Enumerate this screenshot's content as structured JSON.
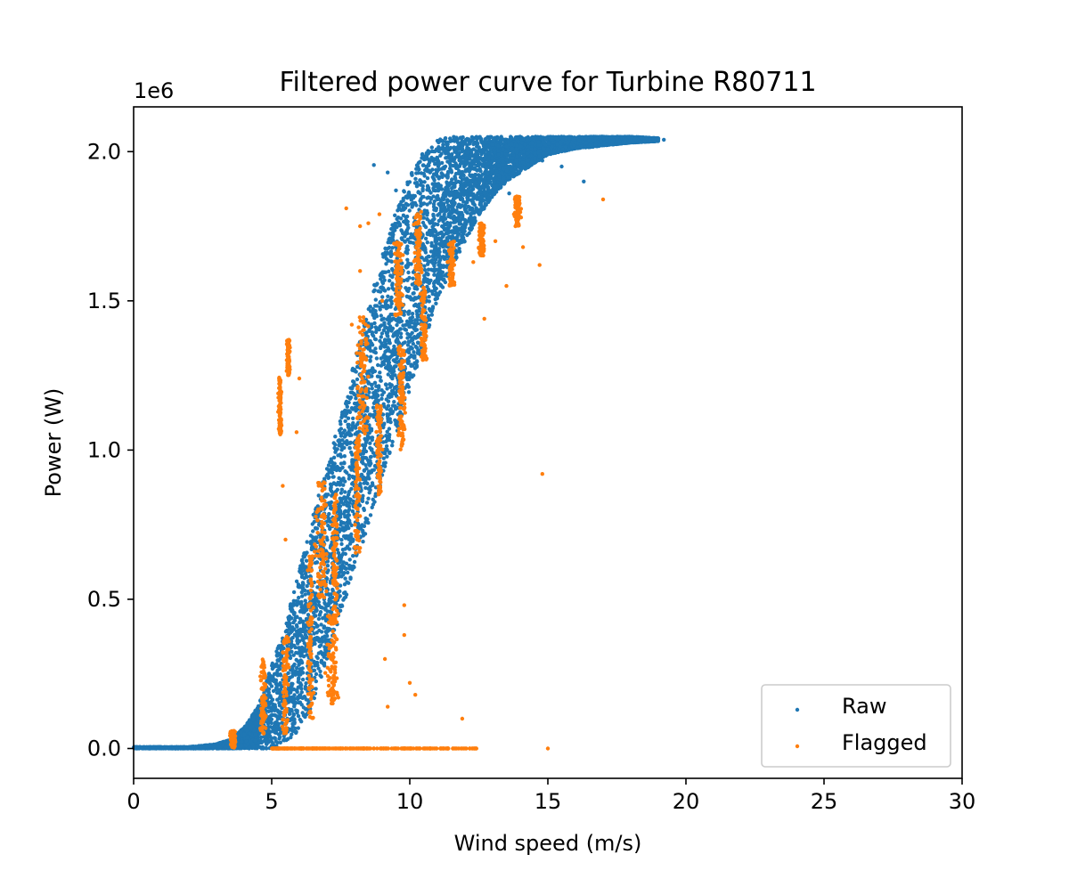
{
  "chart_data": {
    "type": "scatter",
    "title": "Filtered power curve for Turbine R80711",
    "xlabel": "Wind speed (m/s)",
    "ylabel": "Power (W)",
    "y_multiplier_label": "1e6",
    "xlim": [
      0,
      30
    ],
    "ylim": [
      -100000,
      2150000
    ],
    "x_ticks": [
      0,
      5,
      10,
      15,
      20,
      25,
      30
    ],
    "x_tick_labels": [
      "0",
      "5",
      "10",
      "15",
      "20",
      "25",
      "30"
    ],
    "y_ticks": [
      0,
      500000,
      1000000,
      1500000,
      2000000
    ],
    "y_tick_labels": [
      "0.0",
      "0.5",
      "1.0",
      "1.5",
      "2.0"
    ],
    "grid": false,
    "legend_position": "lower-right",
    "series": [
      {
        "name": "Raw",
        "color": "#1f77b4",
        "band": {
          "x": [
            0,
            2,
            3,
            3.5,
            4,
            4.5,
            5,
            5.5,
            6,
            6.5,
            7,
            7.5,
            8,
            8.5,
            9,
            9.5,
            10,
            10.5,
            11,
            11.5,
            12,
            12.5,
            13,
            13.5,
            14,
            14.5,
            15,
            16,
            17,
            18,
            19
          ],
          "y_low": [
            0,
            0,
            0,
            0,
            0,
            0,
            0,
            20000,
            60000,
            150000,
            300000,
            450000,
            600000,
            750000,
            900000,
            1050000,
            1200000,
            1350000,
            1500000,
            1600000,
            1700000,
            1780000,
            1850000,
            1900000,
            1930000,
            1960000,
            1990000,
            2010000,
            2020000,
            2030000,
            2035000
          ],
          "y_high": [
            5000,
            5000,
            15000,
            30000,
            70000,
            140000,
            280000,
            420000,
            600000,
            780000,
            950000,
            1120000,
            1300000,
            1480000,
            1650000,
            1800000,
            1920000,
            2000000,
            2045000,
            2050000,
            2050000,
            2050000,
            2050000,
            2050000,
            2050000,
            2050000,
            2050000,
            2050000,
            2050000,
            2050000,
            2045000
          ]
        },
        "points": [
          [
            8.7,
            1955000
          ],
          [
            9.2,
            1930000
          ],
          [
            9.5,
            1870000
          ],
          [
            16.3,
            1900000
          ],
          [
            19.2,
            2040000
          ],
          [
            18.5,
            2035000
          ],
          [
            17.8,
            2040000
          ],
          [
            15.5,
            1950000
          ],
          [
            14.8,
            1970000
          ],
          [
            13.6,
            1860000
          ],
          [
            12.9,
            1900000
          ],
          [
            11.8,
            1980000
          ]
        ],
        "count": 9000
      },
      {
        "name": "Flagged",
        "color": "#ff7f0e",
        "clusters": [
          {
            "x": 3.6,
            "y0": 0,
            "y1": 60000,
            "spread": 0.15
          },
          {
            "x": 4.7,
            "y0": 50000,
            "y1": 300000,
            "spread": 0.15
          },
          {
            "x": 5.5,
            "y0": 50000,
            "y1": 380000,
            "spread": 0.15
          },
          {
            "x": 6.4,
            "y0": 100000,
            "y1": 650000,
            "spread": 0.15
          },
          {
            "x": 7.3,
            "y0": 420000,
            "y1": 870000,
            "spread": 0.15
          },
          {
            "x": 8.1,
            "y0": 650000,
            "y1": 1050000,
            "spread": 0.15
          },
          {
            "x": 8.9,
            "y0": 850000,
            "y1": 1150000,
            "spread": 0.15
          },
          {
            "x": 9.7,
            "y0": 1000000,
            "y1": 1350000,
            "spread": 0.15
          },
          {
            "x": 10.5,
            "y0": 1300000,
            "y1": 1550000,
            "spread": 0.15
          },
          {
            "x": 11.5,
            "y0": 1550000,
            "y1": 1700000,
            "spread": 0.15
          },
          {
            "x": 12.6,
            "y0": 1650000,
            "y1": 1760000,
            "spread": 0.15
          },
          {
            "x": 13.9,
            "y0": 1750000,
            "y1": 1850000,
            "spread": 0.15
          },
          {
            "x": 9.6,
            "y0": 1450000,
            "y1": 1700000,
            "spread": 0.2
          },
          {
            "x": 10.3,
            "y0": 1550000,
            "y1": 1800000,
            "spread": 0.2
          },
          {
            "x": 8.3,
            "y0": 1050000,
            "y1": 1450000,
            "spread": 0.3
          },
          {
            "x": 6.8,
            "y0": 500000,
            "y1": 900000,
            "spread": 0.3
          },
          {
            "x": 7.2,
            "y0": 150000,
            "y1": 450000,
            "spread": 0.3
          },
          {
            "x": 5.3,
            "y0": 1050000,
            "y1": 1250000,
            "spread": 0.08
          },
          {
            "x": 5.6,
            "y0": 1250000,
            "y1": 1370000,
            "spread": 0.08
          }
        ],
        "zero_line": {
          "x0": 5.0,
          "x1": 12.5,
          "y": 0
        },
        "points": [
          [
            7.7,
            1810000
          ],
          [
            8.2,
            1750000
          ],
          [
            8.5,
            1760000
          ],
          [
            8.9,
            1790000
          ],
          [
            12.3,
            1630000
          ],
          [
            14.1,
            1680000
          ],
          [
            14.7,
            1620000
          ],
          [
            17.0,
            1840000
          ],
          [
            13.5,
            1550000
          ],
          [
            12.7,
            1440000
          ],
          [
            5.9,
            1060000
          ],
          [
            6.0,
            1240000
          ],
          [
            5.4,
            880000
          ],
          [
            5.5,
            700000
          ],
          [
            14.8,
            920000
          ],
          [
            9.8,
            480000
          ],
          [
            9.8,
            380000
          ],
          [
            9.1,
            300000
          ],
          [
            10.0,
            220000
          ],
          [
            10.2,
            180000
          ],
          [
            11.9,
            100000
          ],
          [
            9.2,
            140000
          ],
          [
            15.0,
            0
          ],
          [
            8.2,
            1600000
          ],
          [
            9.0,
            1500000
          ],
          [
            7.9,
            1420000
          ],
          [
            13.1,
            1700000
          ]
        ],
        "count": 1800
      }
    ]
  }
}
